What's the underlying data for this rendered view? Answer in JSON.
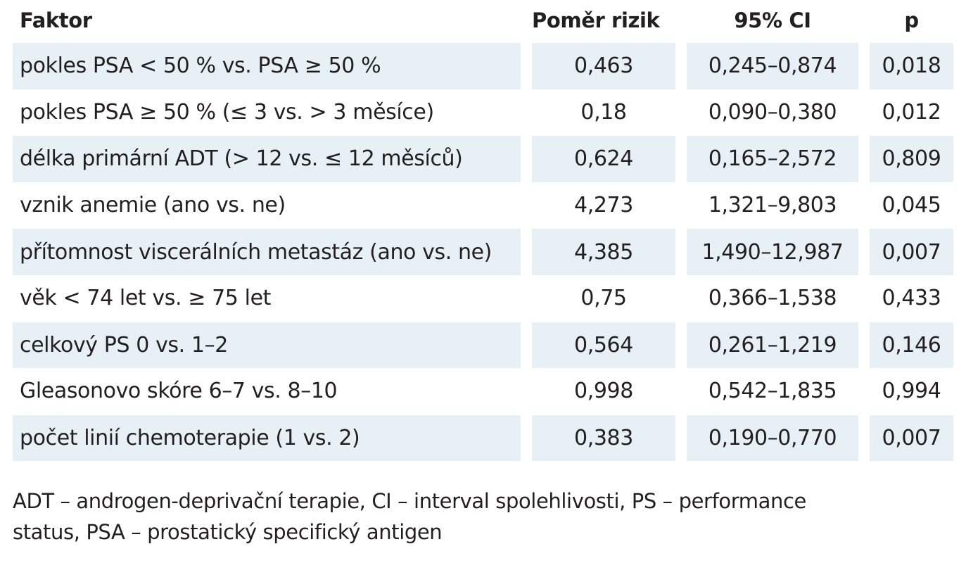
{
  "table": {
    "headers": {
      "factor": "Faktor",
      "hazard_ratio": "Poměr rizik",
      "ci": "95% CI",
      "p": "p"
    },
    "rows": [
      {
        "factor": "pokles PSA < 50 % vs. PSA ≥ 50 %",
        "hazard_ratio": "0,463",
        "ci": "0,245–0,874",
        "p": "0,018"
      },
      {
        "factor": "pokles PSA ≥ 50 % (≤ 3 vs. > 3 měsíce)",
        "hazard_ratio": "0,18",
        "ci": "0,090–0,380",
        "p": "0,012"
      },
      {
        "factor": "délka primární ADT (> 12 vs. ≤ 12 měsíců)",
        "hazard_ratio": "0,624",
        "ci": "0,165–2,572",
        "p": "0,809"
      },
      {
        "factor": "vznik anemie (ano vs. ne)",
        "hazard_ratio": "4,273",
        "ci": "1,321–9,803",
        "p": "0,045"
      },
      {
        "factor": "přítomnost viscerálních metastáz (ano vs. ne)",
        "hazard_ratio": "4,385",
        "ci": "1,490–12,987",
        "p": "0,007"
      },
      {
        "factor": "věk < 74 let vs. ≥ 75 let",
        "hazard_ratio": "0,75",
        "ci": "0,366–1,538",
        "p": "0,433"
      },
      {
        "factor": "celkový PS 0 vs. 1–2",
        "hazard_ratio": "0,564",
        "ci": "0,261–1,219",
        "p": "0,146"
      },
      {
        "factor": "Gleasonovo skóre 6–7 vs. 8–10",
        "hazard_ratio": "0,998",
        "ci": "0,542–1,835",
        "p": "0,994"
      },
      {
        "factor": "počet linií chemoterapie (1 vs. 2)",
        "hazard_ratio": "0,383",
        "ci": "0,190–0,770",
        "p": "0,007"
      }
    ]
  },
  "footnote": {
    "line1": "ADT – androgen-deprivační terapie, CI – interval spolehlivosti, PS – performance",
    "line2": "status, PSA – prostatický specifický antigen"
  },
  "colors": {
    "row_shade": "#e6f0f5",
    "text": "#231f20"
  }
}
